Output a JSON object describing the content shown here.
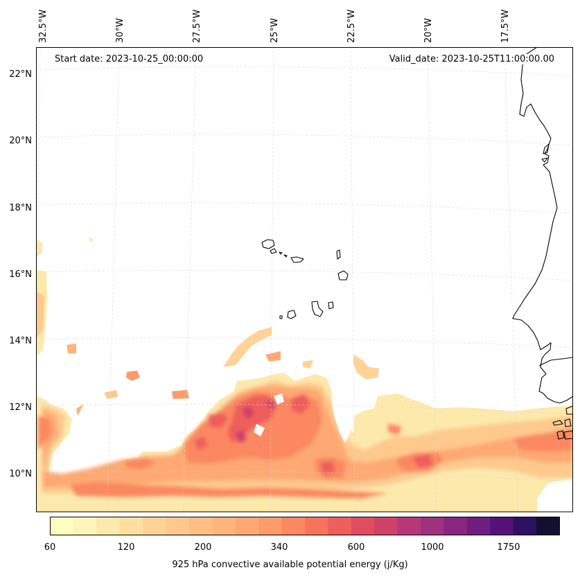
{
  "map": {
    "start_date": "Start date: 2023-10-25_00:00:00",
    "valid_date": "Valid_date: 2023-10-25T11:00:00.00",
    "lon_labels": [
      "32.5°W",
      "30°W",
      "27.5°W",
      "25°W",
      "22.5°W",
      "20°W",
      "17.5°W"
    ],
    "lat_labels": [
      "22°N",
      "20°N",
      "18°N",
      "16°N",
      "14°N",
      "12°N",
      "10°N"
    ],
    "variable": "925 hPa convective available potential energy",
    "units": "j/Kg",
    "region": "Eastern tropical Atlantic, Cape Verde Islands and West African coast"
  },
  "colorbar": {
    "label": "925 hPa convective available potential energy (j/Kg)",
    "tick_labels": [
      "60",
      "120",
      "200",
      "340",
      "600",
      "1000",
      "1750"
    ],
    "levels": [
      "60",
      "80",
      "100",
      "120",
      "140",
      "160",
      "180",
      "200",
      "240",
      "280",
      "340",
      "400",
      "500",
      "600",
      "700",
      "800",
      "1000",
      "1250",
      "1500",
      "1750",
      "2000",
      "2500"
    ],
    "colors": [
      "#fcfdbf",
      "#fdf4b8",
      "#fde9ac",
      "#fedfa0",
      "#fed395",
      "#fec98d",
      "#febe84",
      "#feb47b",
      "#fea973",
      "#fd9b6b",
      "#fb8861",
      "#f7735c",
      "#ee5f5c",
      "#e14d60",
      "#cf4167",
      "#b73779",
      "#a0317e",
      "#882681",
      "#6e1e80",
      "#541279",
      "#2d1163",
      "#12102e"
    ]
  },
  "colors": {
    "coastline": "#000000",
    "gridline": "#d0d0d0",
    "background": "#ffffff"
  }
}
